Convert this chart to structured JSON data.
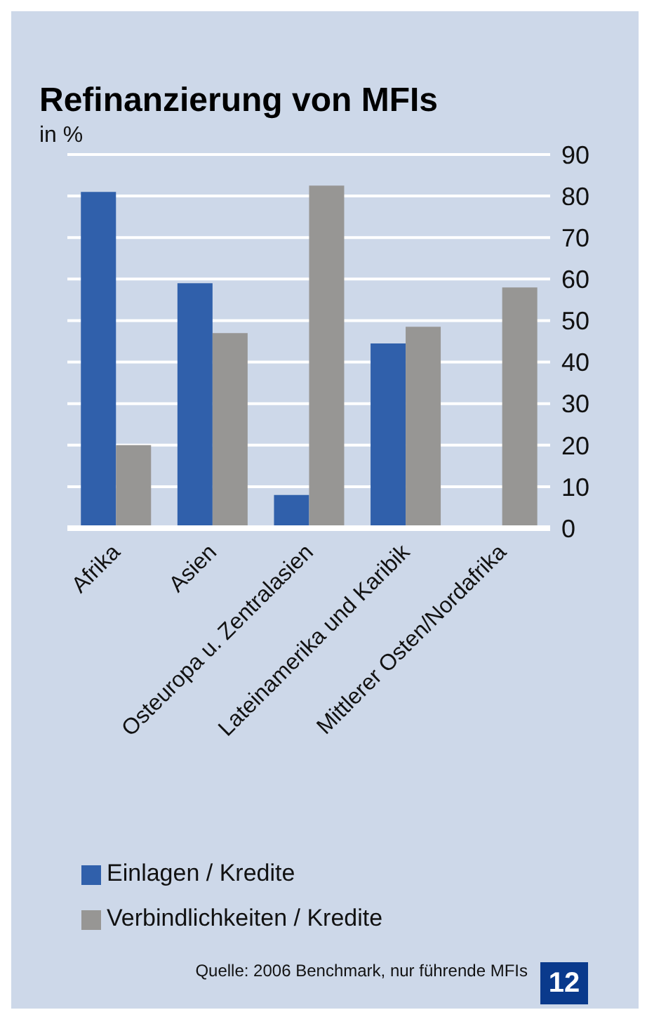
{
  "chart_data": {
    "type": "bar",
    "title": "Refinanzierung von MFIs",
    "subtitle": "in %",
    "categories": [
      "Afrika",
      "Asien",
      "Osteuropa u. Zentralasien",
      "Lateinamerika und Karibik",
      "Mittlerer Osten/Nordafrika"
    ],
    "series": [
      {
        "name": "Einlagen / Kredite",
        "color": "#3060ab",
        "values": [
          81,
          59,
          8,
          44.5,
          null
        ]
      },
      {
        "name": "Verbindlichkeiten / Kredite",
        "color": "#979694",
        "values": [
          20,
          47,
          82.5,
          48.5,
          58
        ]
      }
    ],
    "ylim": [
      0,
      90
    ],
    "yticks": [
      0,
      10,
      20,
      30,
      40,
      50,
      60,
      70,
      80,
      90
    ],
    "grid": "y",
    "legend": "bottom",
    "annotations": [
      "Quelle: 2006 Benchmark, nur führende MFIs",
      "12"
    ]
  }
}
